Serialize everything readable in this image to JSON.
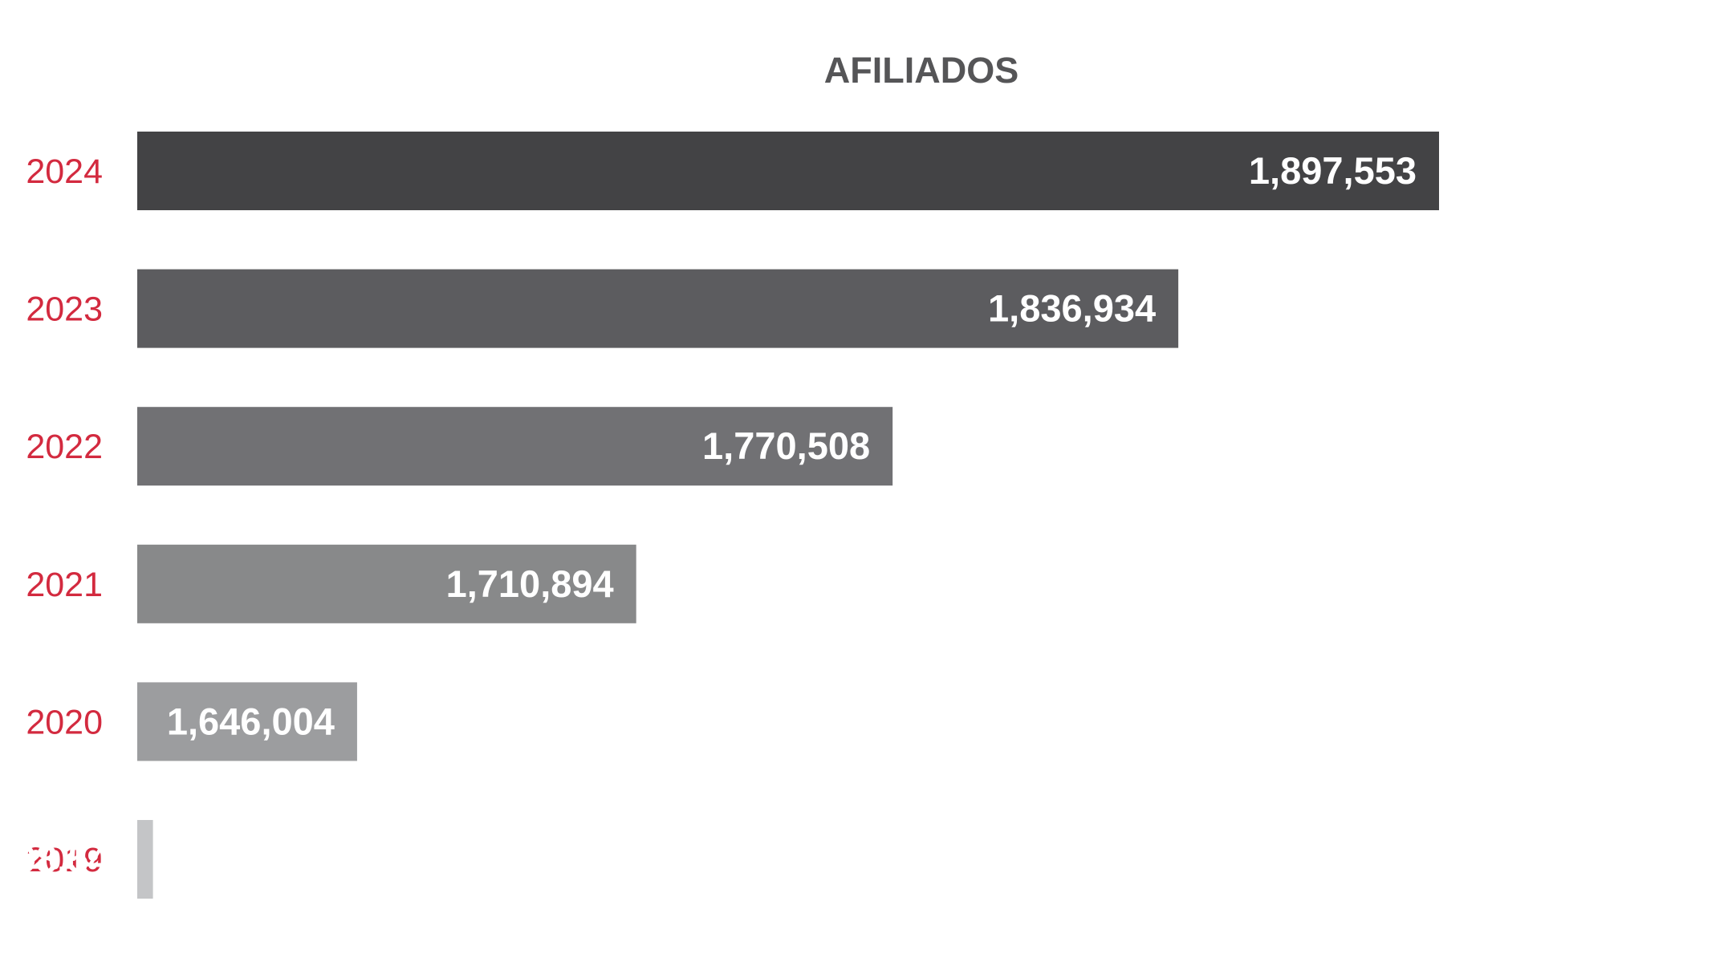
{
  "chart_data": {
    "type": "bar",
    "orientation": "horizontal",
    "title": "AFILIADOS",
    "xlabel": "",
    "ylabel": "",
    "categories": [
      "2024",
      "2023",
      "2022",
      "2021",
      "2020",
      "2019"
    ],
    "values": [
      1897553,
      1836934,
      1770508,
      1710894,
      1646004,
      1598541
    ],
    "value_labels": [
      "1,897,553",
      "1,836,934",
      "1,770,508",
      "1,710,894",
      "1,646,004",
      "1,598,541"
    ],
    "bar_colors": [
      "#434345",
      "#5c5c5f",
      "#717174",
      "#88898a",
      "#9c9d9f",
      "#c4c5c7"
    ],
    "category_label_color": "#d32a3f",
    "title_color": "#555557",
    "value_label_color": "#ffffff",
    "grid": false,
    "legend": "none"
  }
}
